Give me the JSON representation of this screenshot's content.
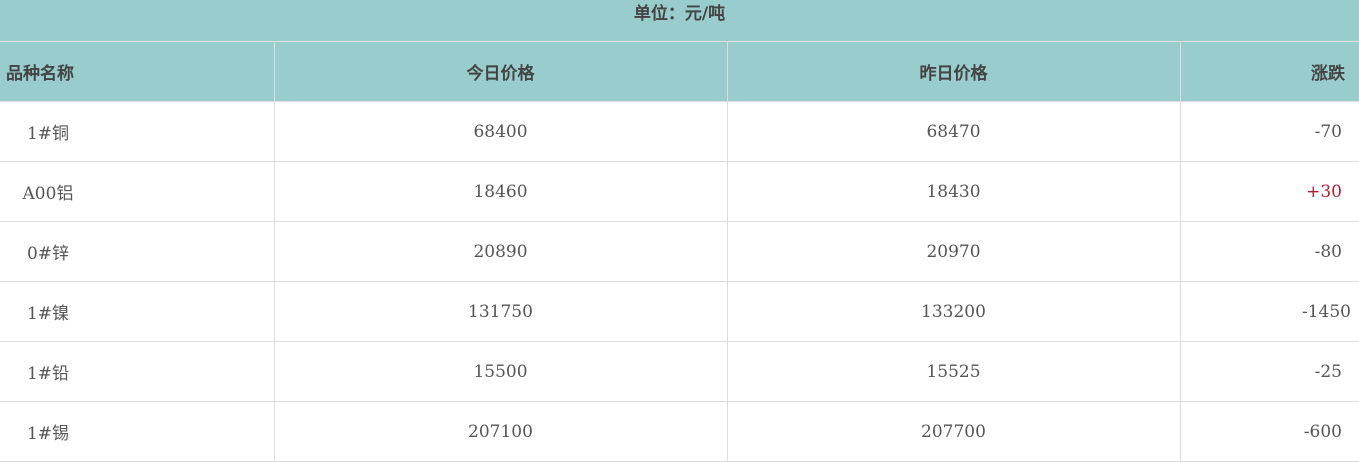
{
  "unit_label": "单位：元/吨",
  "columns": [
    "品种名称",
    "今日价格",
    "昨日价格",
    "涨跌"
  ],
  "rows": [
    {
      "name": "1#铜",
      "today": "68400",
      "yesterday": "68470",
      "change": "-70"
    },
    {
      "name": "A00铝",
      "today": "18460",
      "yesterday": "18430",
      "change": "+30"
    },
    {
      "name": "0#锌",
      "today": "20890",
      "yesterday": "20970",
      "change": "-80"
    },
    {
      "name": "1#镍",
      "today": "131750",
      "yesterday": "133200",
      "change": "-1450"
    },
    {
      "name": "1#铅",
      "today": "15500",
      "yesterday": "15525",
      "change": "-25"
    },
    {
      "name": "1#锡",
      "today": "207100",
      "yesterday": "207700",
      "change": "-600"
    }
  ],
  "colors": {
    "header_bg": "#99cccc",
    "border": "#dddddd"
  }
}
